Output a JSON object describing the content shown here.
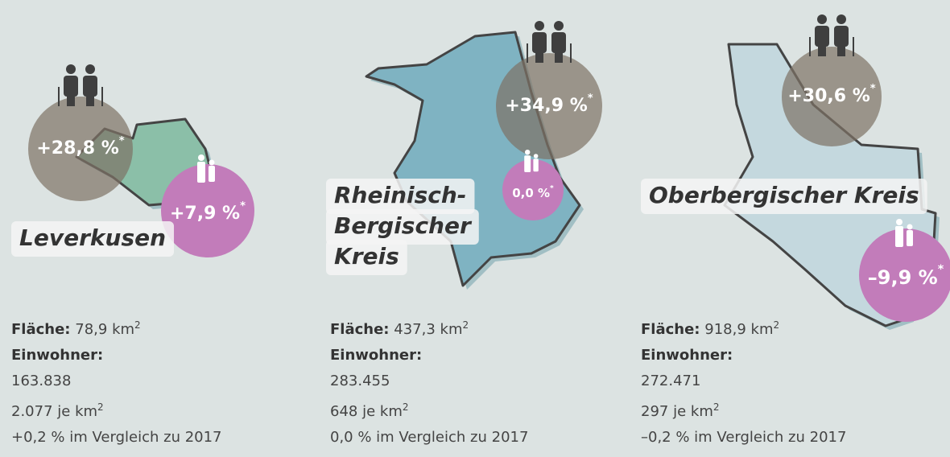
{
  "labels": {
    "area": "Fläche:",
    "unit": "km",
    "sup": "2",
    "population": "Einwohner:",
    "per": "je km",
    "note": "*"
  },
  "regions": [
    {
      "name_lines": [
        "Leverkusen"
      ],
      "elderly": "+28,8 %",
      "children": "+7,9 %",
      "area": "78,9",
      "population": "163.838",
      "density": "2.077",
      "change": "+0,2 % im Vergleich zu 2017"
    },
    {
      "name_lines": [
        "Rheinisch-",
        "Bergischer",
        "Kreis"
      ],
      "elderly": "+34,9 %",
      "children": "0,0 %",
      "area": "437,3",
      "population": "283.455",
      "density": "648",
      "change": "0,0 % im Vergleich zu 2017"
    },
    {
      "name_lines": [
        "Oberbergischer Kreis"
      ],
      "elderly": "+30,6 %",
      "children": "–9,9 %",
      "area": "918,9",
      "population": "272.471",
      "density": "297",
      "change": "–0,2 % im Vergleich zu 2017"
    }
  ]
}
